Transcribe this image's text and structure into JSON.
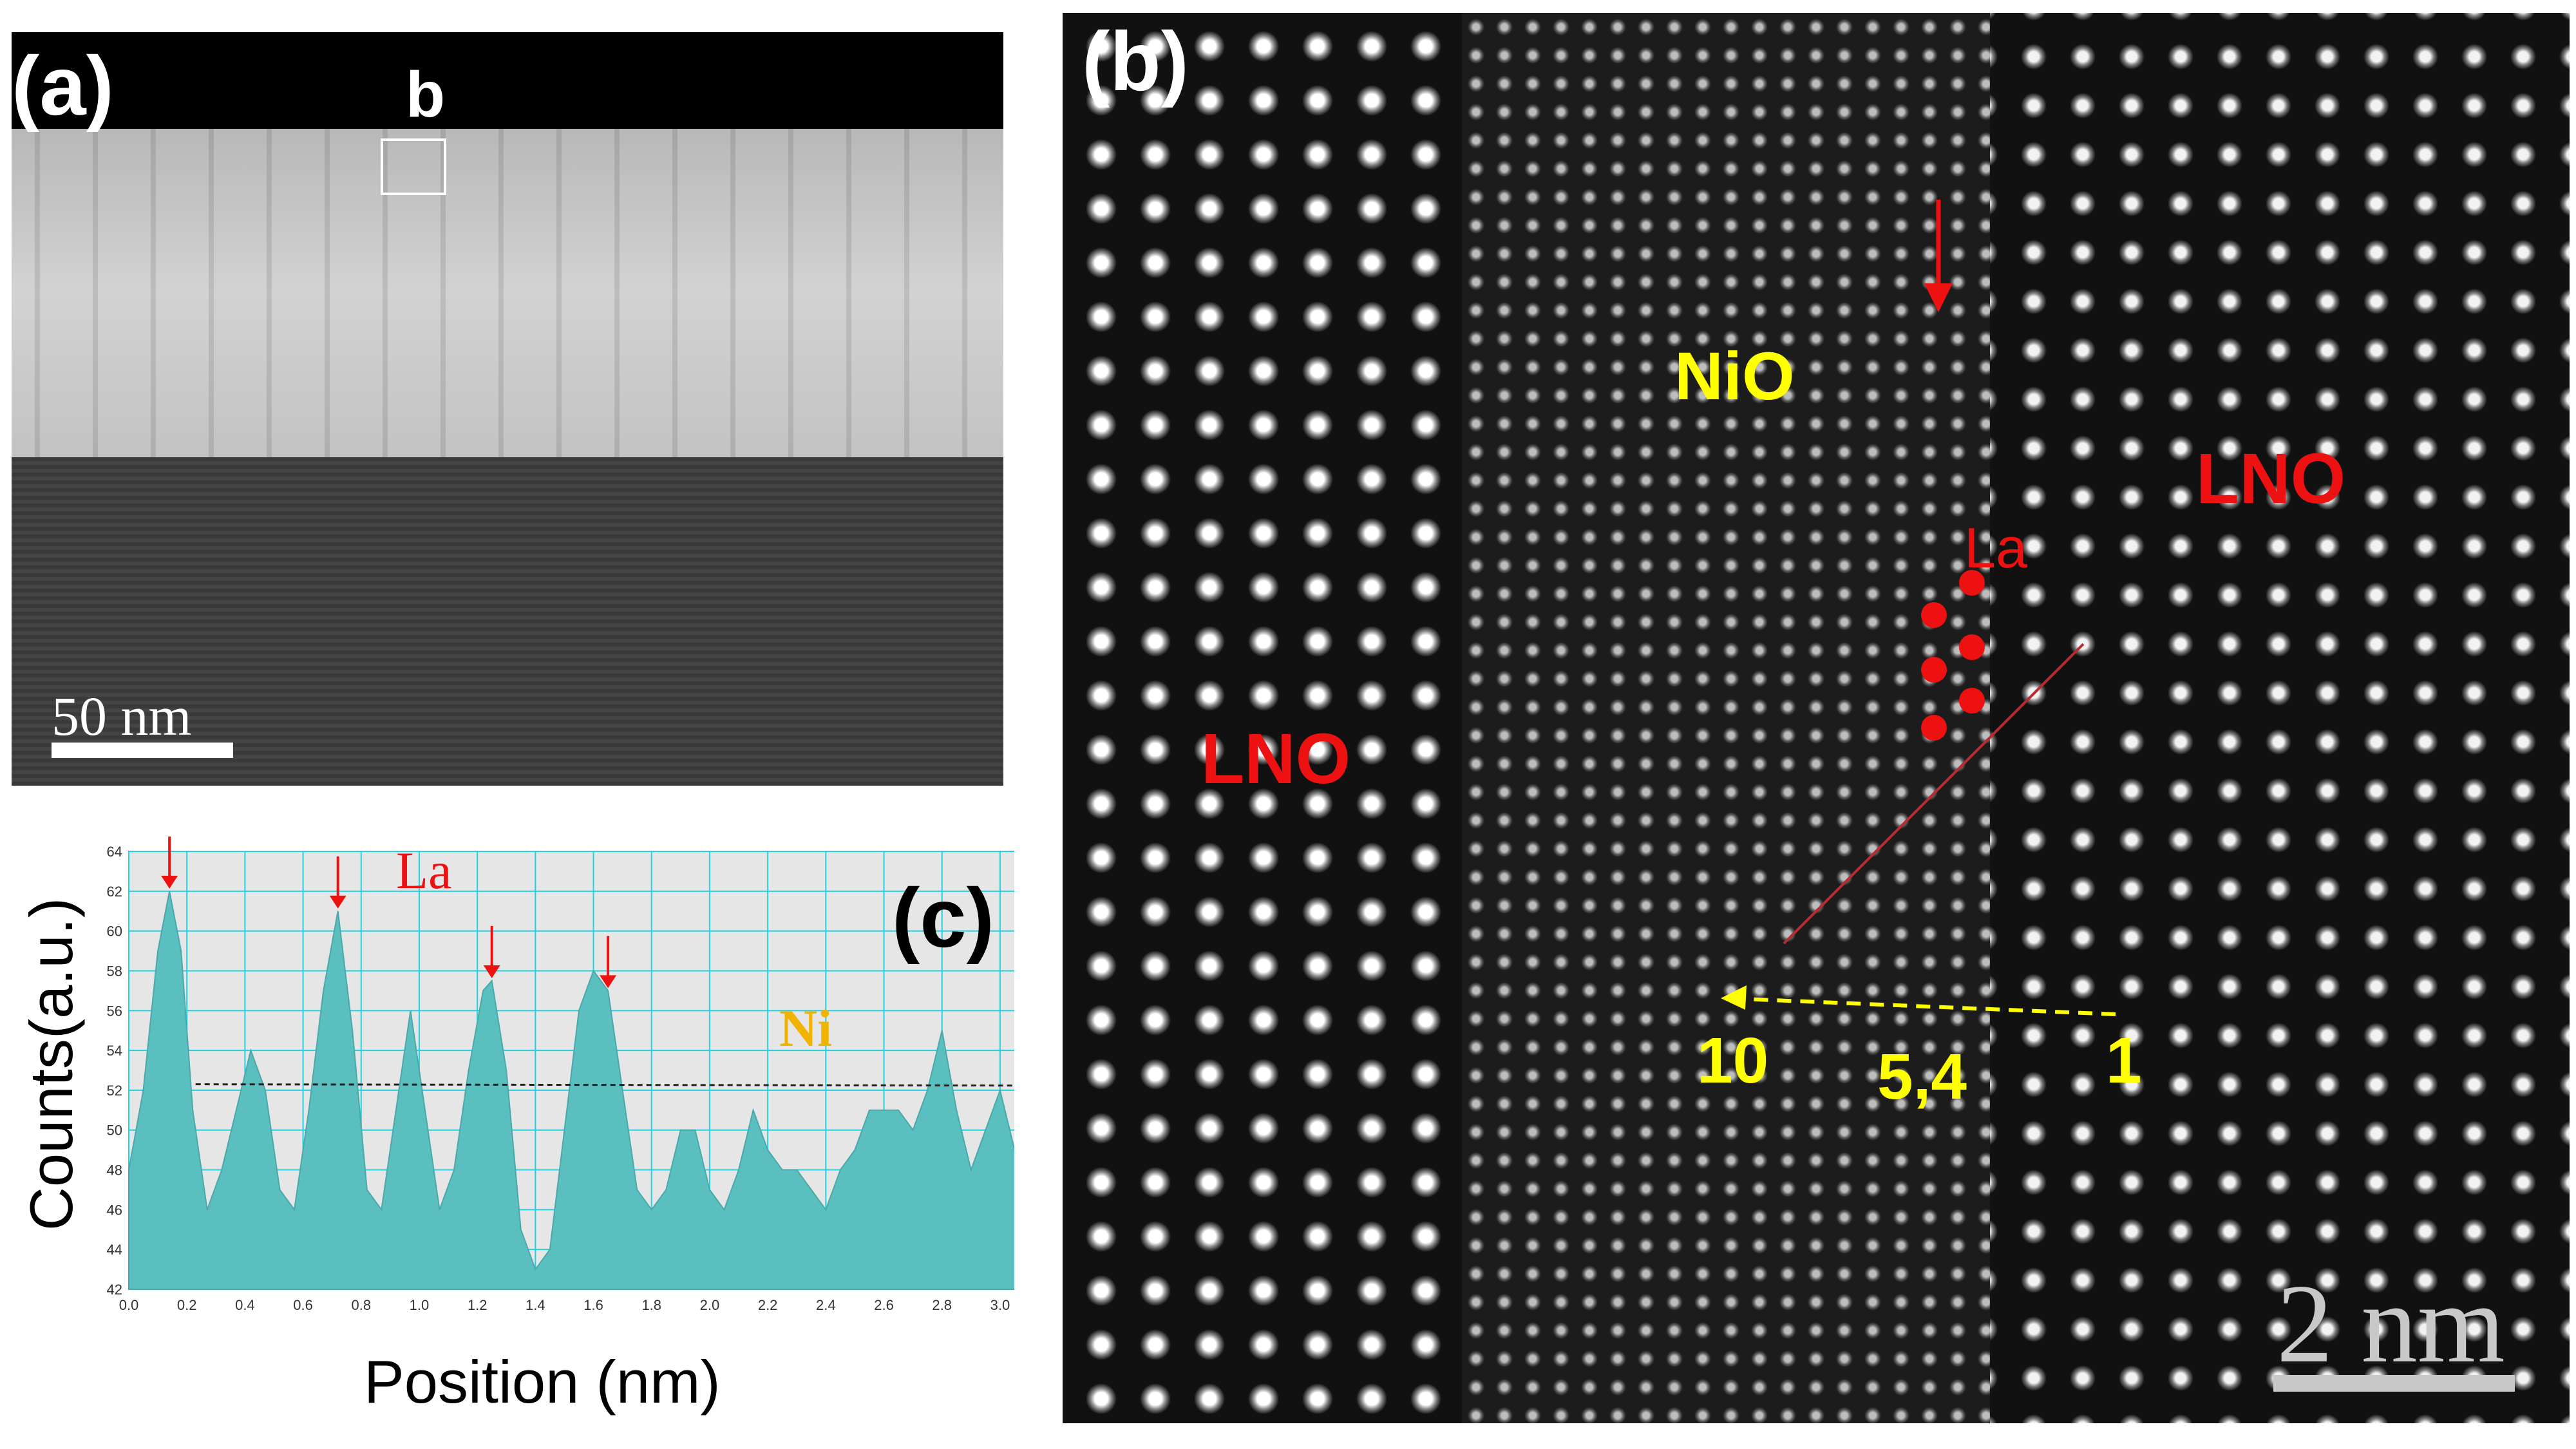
{
  "panel_a": {
    "label": "(a)",
    "inset_label": "b",
    "scale_bar": "50 nm"
  },
  "panel_b": {
    "label": "(b)",
    "region_labels": {
      "left": "LNO",
      "middle": "NiO",
      "right": "LNO"
    },
    "atom_label": "La",
    "arrow_labels": {
      "end": "10",
      "middle": "5,4",
      "start": "1"
    },
    "scale_bar": "2  nm",
    "colors": {
      "red": "#ee1111",
      "yellow": "#ffff00"
    }
  },
  "panel_c": {
    "label": "(c)",
    "series_labels": {
      "la": "La",
      "ni": "Ni"
    },
    "colors": {
      "fill": "#5bbfc0",
      "grid": "#26d0e0",
      "la": "#ee1111",
      "ni": "#f0b400"
    }
  },
  "chart_data": {
    "type": "area",
    "title": "",
    "xlabel": "Position (nm)",
    "ylabel": "Counts(a.u.)",
    "xlim": [
      0.0,
      3.1
    ],
    "ylim": [
      42,
      64
    ],
    "x_ticks": [
      "0.0",
      "0.2",
      "0.4",
      "0.6",
      "0.8",
      "1.0",
      "1.2",
      "1.4",
      "1.6",
      "1.8",
      "2.0",
      "2.2",
      "2.4",
      "2.6",
      "2.8",
      "3.0"
    ],
    "y_ticks": [
      "42",
      "44",
      "46",
      "48",
      "50",
      "52",
      "54",
      "56",
      "58",
      "60",
      "62",
      "64"
    ],
    "reference_line": 52.3,
    "la_peak_positions": [
      0.14,
      0.72,
      1.25,
      1.65
    ],
    "series": [
      {
        "x": [
          0.0,
          0.05,
          0.1,
          0.14,
          0.18,
          0.22,
          0.27,
          0.32,
          0.37,
          0.42,
          0.47,
          0.52,
          0.57,
          0.62,
          0.67,
          0.72,
          0.77,
          0.82,
          0.87,
          0.92,
          0.97,
          1.02,
          1.07,
          1.12,
          1.17,
          1.22,
          1.25,
          1.3,
          1.35,
          1.4,
          1.45,
          1.5,
          1.55,
          1.6,
          1.65,
          1.7,
          1.75,
          1.8,
          1.85,
          1.9,
          1.95,
          2.0,
          2.05,
          2.1,
          2.15,
          2.2,
          2.25,
          2.3,
          2.35,
          2.4,
          2.45,
          2.5,
          2.55,
          2.6,
          2.65,
          2.7,
          2.75,
          2.8,
          2.85,
          2.9,
          2.95,
          3.0,
          3.05,
          3.08
        ],
        "values": [
          48,
          52,
          59,
          62,
          59,
          51,
          46,
          48,
          51,
          54,
          52,
          47,
          46,
          51,
          57,
          61,
          55,
          47,
          46,
          51,
          56,
          51,
          46,
          48,
          53,
          57,
          57.5,
          53,
          45,
          43,
          44,
          50,
          56,
          58,
          57,
          52,
          47,
          46,
          47,
          50,
          50,
          47,
          46,
          48,
          51,
          49,
          48,
          48,
          47,
          46,
          48,
          49,
          51,
          51,
          51,
          50,
          52,
          55,
          51,
          48,
          50,
          52,
          49,
          48
        ]
      }
    ]
  }
}
